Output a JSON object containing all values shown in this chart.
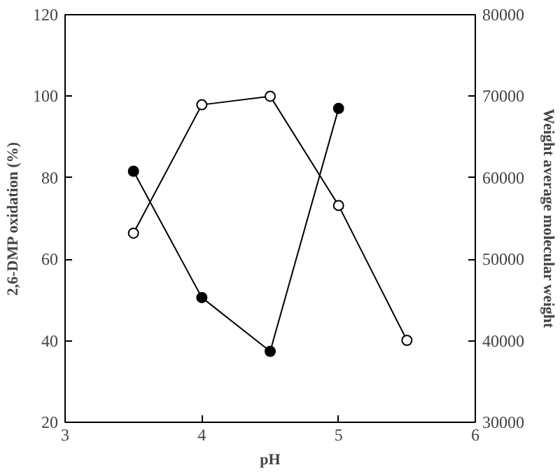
{
  "chart_data": {
    "type": "line",
    "xlabel": "pH",
    "ylabel": "2,6-DMP oxidation (%)",
    "y2label": "Weight average molecular weight",
    "xlim": [
      3,
      6
    ],
    "xticks": [
      3,
      4,
      5,
      6
    ],
    "ylim": [
      20,
      120
    ],
    "yticks": [
      20,
      40,
      60,
      80,
      100,
      120
    ],
    "y2lim": [
      30000,
      80000
    ],
    "y2ticks": [
      30000,
      40000,
      50000,
      60000,
      70000,
      80000
    ],
    "marker": "circle",
    "line_style": "solid",
    "grid": false,
    "series": [
      {
        "color": "#000000",
        "x": [
          3.5,
          4.0,
          4.5,
          5.0,
          5.5
        ],
        "values": [
          66.4,
          97.9,
          100,
          73.2,
          40.1
        ]
      },
      {
        "color": "#000000",
        "axis": "y2",
        "x": [
          3.5,
          4.0,
          4.5,
          5.0
        ],
        "values": [
          60800,
          45300,
          38700,
          68500
        ]
      }
    ]
  }
}
